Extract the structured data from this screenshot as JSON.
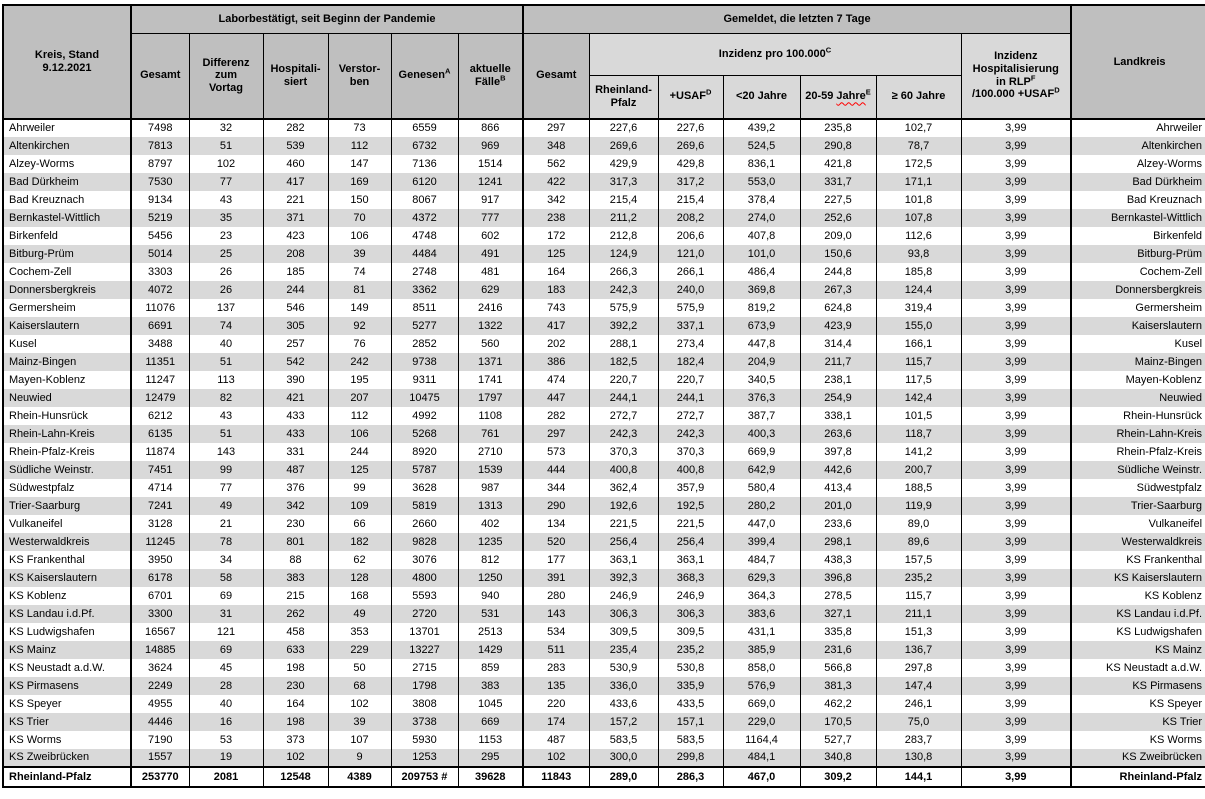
{
  "colors": {
    "header_dark": "#bfbfbf",
    "header_light": "#d9d9d9",
    "row_stripe": "#d9d9d9",
    "border": "#000000",
    "spellcheck_red": "#ff0000"
  },
  "table": {
    "corner_header": "Kreis, Stand\n9.12.2021",
    "group_headers": {
      "labor": "Laborbestätigt, seit Beginn der Pandemie",
      "gemeldet": "Gemeldet, die letzten 7 Tage"
    },
    "landkreis_header": "Landkreis",
    "labor_columns": [
      {
        "label": "Gesamt"
      },
      {
        "label": "Differenz\nzum\nVortag"
      },
      {
        "label": "Hospitali-\nsiert"
      },
      {
        "label": "Verstor-\nben"
      },
      {
        "label": "Genesen",
        "sup": "A"
      },
      {
        "label": "aktuelle\nFälle",
        "sup": "B"
      }
    ],
    "gemeldet_gesamt_header": "Gesamt",
    "inzidenz_group_header": {
      "label": "Inzidenz pro 100.000",
      "sup": "C"
    },
    "inzidenz_columns": {
      "rlp": "Rheinland-\nPfalz",
      "usaf": {
        "base": "+USAF",
        "sup": "D"
      },
      "under20": "<20 Jahre",
      "age2059": {
        "prefix": "20-59 ",
        "wavy": "Jahre",
        "sup": "E"
      },
      "over60": "≥ 60 Jahre"
    },
    "hosp_header": {
      "line1": "Inzidenz",
      "line2": "Hospitalisierung",
      "line3": "in RLP",
      "line3_sup": "F",
      "line4": "/100.000 +USAF",
      "line4_sup": "D"
    },
    "rows": [
      {
        "kreis": "Ahrweiler",
        "values": [
          "7498",
          "32",
          "282",
          "73",
          "6559",
          "866",
          "297",
          "227,6",
          "227,6",
          "439,2",
          "235,8",
          "102,7",
          "3,99"
        ]
      },
      {
        "kreis": "Altenkirchen",
        "values": [
          "7813",
          "51",
          "539",
          "112",
          "6732",
          "969",
          "348",
          "269,6",
          "269,6",
          "524,5",
          "290,8",
          "78,7",
          "3,99"
        ]
      },
      {
        "kreis": "Alzey-Worms",
        "values": [
          "8797",
          "102",
          "460",
          "147",
          "7136",
          "1514",
          "562",
          "429,9",
          "429,8",
          "836,1",
          "421,8",
          "172,5",
          "3,99"
        ]
      },
      {
        "kreis": "Bad Dürkheim",
        "values": [
          "7530",
          "77",
          "417",
          "169",
          "6120",
          "1241",
          "422",
          "317,3",
          "317,2",
          "553,0",
          "331,7",
          "171,1",
          "3,99"
        ]
      },
      {
        "kreis": "Bad Kreuznach",
        "values": [
          "9134",
          "43",
          "221",
          "150",
          "8067",
          "917",
          "342",
          "215,4",
          "215,4",
          "378,4",
          "227,5",
          "101,8",
          "3,99"
        ]
      },
      {
        "kreis": "Bernkastel-Wittlich",
        "values": [
          "5219",
          "35",
          "371",
          "70",
          "4372",
          "777",
          "238",
          "211,2",
          "208,2",
          "274,0",
          "252,6",
          "107,8",
          "3,99"
        ]
      },
      {
        "kreis": "Birkenfeld",
        "values": [
          "5456",
          "23",
          "423",
          "106",
          "4748",
          "602",
          "172",
          "212,8",
          "206,6",
          "407,8",
          "209,0",
          "112,6",
          "3,99"
        ]
      },
      {
        "kreis": "Bitburg-Prüm",
        "values": [
          "5014",
          "25",
          "208",
          "39",
          "4484",
          "491",
          "125",
          "124,9",
          "121,0",
          "101,0",
          "150,6",
          "93,8",
          "3,99"
        ]
      },
      {
        "kreis": "Cochem-Zell",
        "values": [
          "3303",
          "26",
          "185",
          "74",
          "2748",
          "481",
          "164",
          "266,3",
          "266,1",
          "486,4",
          "244,8",
          "185,8",
          "3,99"
        ]
      },
      {
        "kreis": "Donnersbergkreis",
        "values": [
          "4072",
          "26",
          "244",
          "81",
          "3362",
          "629",
          "183",
          "242,3",
          "240,0",
          "369,8",
          "267,3",
          "124,4",
          "3,99"
        ]
      },
      {
        "kreis": "Germersheim",
        "values": [
          "11076",
          "137",
          "546",
          "149",
          "8511",
          "2416",
          "743",
          "575,9",
          "575,9",
          "819,2",
          "624,8",
          "319,4",
          "3,99"
        ]
      },
      {
        "kreis": "Kaiserslautern",
        "values": [
          "6691",
          "74",
          "305",
          "92",
          "5277",
          "1322",
          "417",
          "392,2",
          "337,1",
          "673,9",
          "423,9",
          "155,0",
          "3,99"
        ]
      },
      {
        "kreis": "Kusel",
        "values": [
          "3488",
          "40",
          "257",
          "76",
          "2852",
          "560",
          "202",
          "288,1",
          "273,4",
          "447,8",
          "314,4",
          "166,1",
          "3,99"
        ]
      },
      {
        "kreis": "Mainz-Bingen",
        "values": [
          "11351",
          "51",
          "542",
          "242",
          "9738",
          "1371",
          "386",
          "182,5",
          "182,4",
          "204,9",
          "211,7",
          "115,7",
          "3,99"
        ]
      },
      {
        "kreis": "Mayen-Koblenz",
        "values": [
          "11247",
          "113",
          "390",
          "195",
          "9311",
          "1741",
          "474",
          "220,7",
          "220,7",
          "340,5",
          "238,1",
          "117,5",
          "3,99"
        ]
      },
      {
        "kreis": "Neuwied",
        "values": [
          "12479",
          "82",
          "421",
          "207",
          "10475",
          "1797",
          "447",
          "244,1",
          "244,1",
          "376,3",
          "254,9",
          "142,4",
          "3,99"
        ]
      },
      {
        "kreis": "Rhein-Hunsrück",
        "values": [
          "6212",
          "43",
          "433",
          "112",
          "4992",
          "1108",
          "282",
          "272,7",
          "272,7",
          "387,7",
          "338,1",
          "101,5",
          "3,99"
        ]
      },
      {
        "kreis": "Rhein-Lahn-Kreis",
        "values": [
          "6135",
          "51",
          "433",
          "106",
          "5268",
          "761",
          "297",
          "242,3",
          "242,3",
          "400,3",
          "263,6",
          "118,7",
          "3,99"
        ]
      },
      {
        "kreis": "Rhein-Pfalz-Kreis",
        "values": [
          "11874",
          "143",
          "331",
          "244",
          "8920",
          "2710",
          "573",
          "370,3",
          "370,3",
          "669,9",
          "397,8",
          "141,2",
          "3,99"
        ]
      },
      {
        "kreis": "Südliche Weinstr.",
        "values": [
          "7451",
          "99",
          "487",
          "125",
          "5787",
          "1539",
          "444",
          "400,8",
          "400,8",
          "642,9",
          "442,6",
          "200,7",
          "3,99"
        ]
      },
      {
        "kreis": "Südwestpfalz",
        "values": [
          "4714",
          "77",
          "376",
          "99",
          "3628",
          "987",
          "344",
          "362,4",
          "357,9",
          "580,4",
          "413,4",
          "188,5",
          "3,99"
        ]
      },
      {
        "kreis": "Trier-Saarburg",
        "values": [
          "7241",
          "49",
          "342",
          "109",
          "5819",
          "1313",
          "290",
          "192,6",
          "192,5",
          "280,2",
          "201,0",
          "119,9",
          "3,99"
        ]
      },
      {
        "kreis": "Vulkaneifel",
        "values": [
          "3128",
          "21",
          "230",
          "66",
          "2660",
          "402",
          "134",
          "221,5",
          "221,5",
          "447,0",
          "233,6",
          "89,0",
          "3,99"
        ]
      },
      {
        "kreis": "Westerwaldkreis",
        "values": [
          "11245",
          "78",
          "801",
          "182",
          "9828",
          "1235",
          "520",
          "256,4",
          "256,4",
          "399,4",
          "298,1",
          "89,6",
          "3,99"
        ]
      },
      {
        "kreis": "KS Frankenthal",
        "values": [
          "3950",
          "34",
          "88",
          "62",
          "3076",
          "812",
          "177",
          "363,1",
          "363,1",
          "484,7",
          "438,3",
          "157,5",
          "3,99"
        ]
      },
      {
        "kreis": "KS Kaiserslautern",
        "values": [
          "6178",
          "58",
          "383",
          "128",
          "4800",
          "1250",
          "391",
          "392,3",
          "368,3",
          "629,3",
          "396,8",
          "235,2",
          "3,99"
        ]
      },
      {
        "kreis": "KS Koblenz",
        "values": [
          "6701",
          "69",
          "215",
          "168",
          "5593",
          "940",
          "280",
          "246,9",
          "246,9",
          "364,3",
          "278,5",
          "115,7",
          "3,99"
        ]
      },
      {
        "kreis": "KS Landau i.d.Pf.",
        "values": [
          "3300",
          "31",
          "262",
          "49",
          "2720",
          "531",
          "143",
          "306,3",
          "306,3",
          "383,6",
          "327,1",
          "211,1",
          "3,99"
        ]
      },
      {
        "kreis": "KS Ludwigshafen",
        "values": [
          "16567",
          "121",
          "458",
          "353",
          "13701",
          "2513",
          "534",
          "309,5",
          "309,5",
          "431,1",
          "335,8",
          "151,3",
          "3,99"
        ]
      },
      {
        "kreis": "KS Mainz",
        "values": [
          "14885",
          "69",
          "633",
          "229",
          "13227",
          "1429",
          "511",
          "235,4",
          "235,2",
          "385,9",
          "231,6",
          "136,7",
          "3,99"
        ]
      },
      {
        "kreis": "KS Neustadt a.d.W.",
        "values": [
          "3624",
          "45",
          "198",
          "50",
          "2715",
          "859",
          "283",
          "530,9",
          "530,8",
          "858,0",
          "566,8",
          "297,8",
          "3,99"
        ]
      },
      {
        "kreis": "KS Pirmasens",
        "values": [
          "2249",
          "28",
          "230",
          "68",
          "1798",
          "383",
          "135",
          "336,0",
          "335,9",
          "576,9",
          "381,3",
          "147,4",
          "3,99"
        ]
      },
      {
        "kreis": "KS Speyer",
        "values": [
          "4955",
          "40",
          "164",
          "102",
          "3808",
          "1045",
          "220",
          "433,6",
          "433,5",
          "669,0",
          "462,2",
          "246,1",
          "3,99"
        ]
      },
      {
        "kreis": "KS Trier",
        "values": [
          "4446",
          "16",
          "198",
          "39",
          "3738",
          "669",
          "174",
          "157,2",
          "157,1",
          "229,0",
          "170,5",
          "75,0",
          "3,99"
        ]
      },
      {
        "kreis": "KS Worms",
        "values": [
          "7190",
          "53",
          "373",
          "107",
          "5930",
          "1153",
          "487",
          "583,5",
          "583,5",
          "1164,4",
          "527,7",
          "283,7",
          "3,99"
        ]
      },
      {
        "kreis": "KS Zweibrücken",
        "values": [
          "1557",
          "19",
          "102",
          "9",
          "1253",
          "295",
          "102",
          "300,0",
          "299,8",
          "484,1",
          "340,8",
          "130,8",
          "3,99"
        ]
      }
    ],
    "total_row": {
      "kreis": "Rheinland-Pfalz",
      "values": [
        "253770",
        "2081",
        "12548",
        "4389",
        "209753 #",
        "39628",
        "11843",
        "289,0",
        "286,3",
        "467,0",
        "309,2",
        "144,1",
        "3,99"
      ]
    }
  }
}
